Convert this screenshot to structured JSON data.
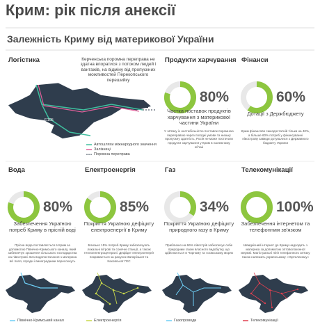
{
  "header": {
    "title": "Крим: рік після анексії",
    "subtitle": "Залежність Криму від материкової України"
  },
  "logistics": {
    "heading": "Логістика",
    "description": "Керченська поромна переправа не здатна впоратися з потоком людей і вантажів, на відміну від пропускних можливостей Перекопського перешийку",
    "map_labels": [
      "E105",
      "E97"
    ],
    "legend": [
      "Автошляхи міжнародного значення",
      "Залізниці",
      "Поромна переправа"
    ]
  },
  "indicators": [
    {
      "heading": "Продукти харчування",
      "percent": 80,
      "percent_label": "80%",
      "caption": "Частка поставок продуктів харчування з материкової частини України",
      "note": "У зв'язку із нестабільністю поставок поромною переправою через погодні умови та низьку пропускну здатність, Росія не може постачати продукти харчування у Крим в належному об'ємі"
    },
    {
      "heading": "Фінанси",
      "percent": 60,
      "percent_label": "60%",
      "caption": "Дотації з Держбюджету",
      "note": "Крим фінансово самодостатній тільки на 40%, а більше 60% потреб у фінансуванні півострову завжди дотувалися з Державного бюджету України"
    },
    {
      "heading": "Вода",
      "percent": 80,
      "percent_label": "80%",
      "caption": "Забезпечення Україною потреб Криму в прісній воді",
      "note": "Прісна вода поставляється в Крим за допомогою Північно-Кримського каналу, який забезпечує зрошення сільського господарства на півострові. Без водопостачання з материка всі поля, городи і виноградники пересохнуть",
      "legend": "Північно-Кримський канал"
    },
    {
      "heading": "Електроенергія",
      "percent": 85,
      "percent_label": "85%",
      "caption": "Покриття Україною дефіциту електроенергії в Криму",
      "note": "Близько 15% потреб Криму забезпечують локальні вітрові та сонячні станції, а також теплоелектроцентралі. Дефіцит електроенергії покривається за рахунок Запорізької та Каховської ГЕС",
      "legend": "Електроенергія"
    },
    {
      "heading": "Газ",
      "percent": 34,
      "percent_label": "34%",
      "caption": "Покриття Україною дефіциту природного газу в Криму",
      "note": "Приблизно на 66% півострів забезпечує себе природним газом власного видобутку, що здійснюється в Чорному та Азовському морях",
      "legend": "Газопроводи"
    },
    {
      "heading": "Телекомунікації",
      "percent": 100,
      "percent_label": "100%",
      "caption": "Забезпечення інтернетом та телефонним зв'язком",
      "note": "Швидкісний інтернет до Криму надходить з материка за допомогою оптоволоконної мережі. Магістральні лінії телефонного зв'язку також належать українському «Укртелекому»",
      "legend": "Телекомунікації"
    }
  ]
}
